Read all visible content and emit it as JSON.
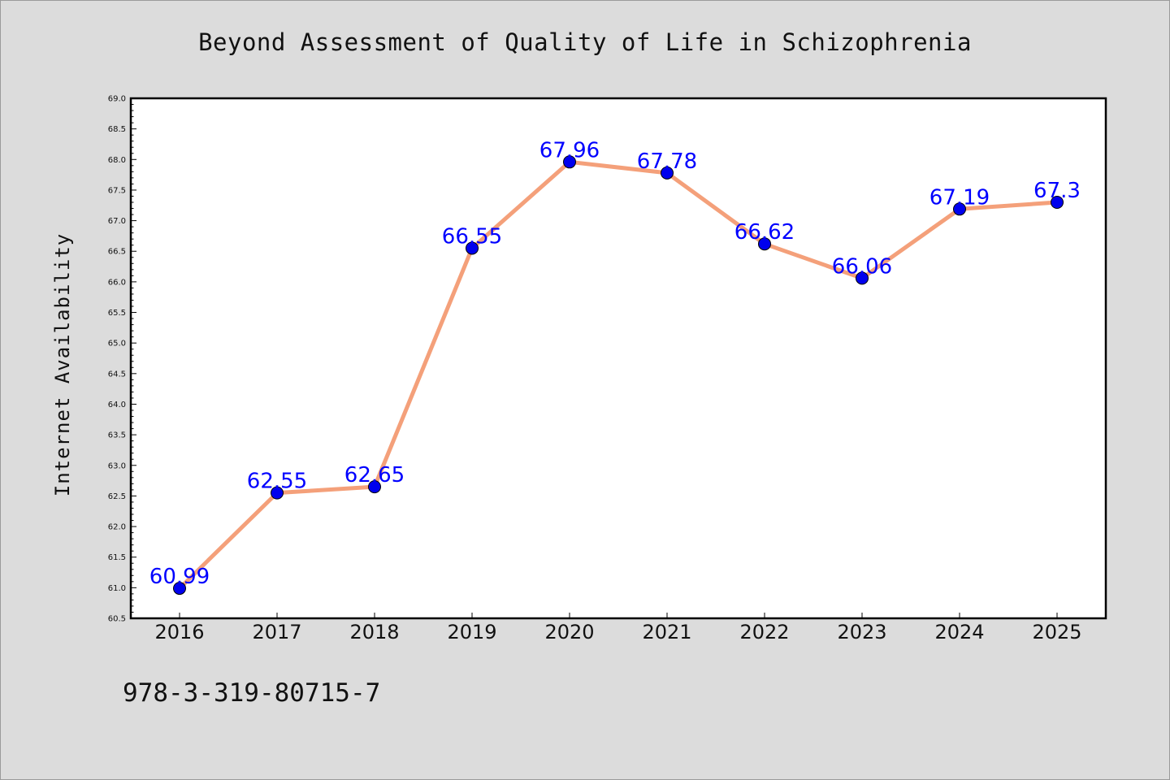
{
  "figure": {
    "title": "Beyond Assessment of Quality of Life in Schizophrenia",
    "footnote": "978-3-319-80715-7"
  },
  "chart_data": {
    "type": "line",
    "title": "Beyond Assessment of Quality of Life in Schizophrenia",
    "xlabel": "",
    "ylabel": "Internet Availability",
    "categories": [
      "2016",
      "2017",
      "2018",
      "2019",
      "2020",
      "2021",
      "2022",
      "2023",
      "2024",
      "2025"
    ],
    "series": [
      {
        "values": [
          60.99,
          62.55,
          62.65,
          66.55,
          67.96,
          67.78,
          66.62,
          66.06,
          67.19,
          67.3
        ],
        "labels": [
          "60.99",
          "62.55",
          "62.65",
          "66.55",
          "67.96",
          "67.78",
          "66.62",
          "66.06",
          "67.19",
          "67.3"
        ],
        "line_color": "#f4a07a",
        "marker_color": "#0000ee",
        "label_color": "#0000ff"
      }
    ],
    "ylim": [
      60.5,
      69.0
    ],
    "yticks": [
      "60.5",
      "61.0",
      "61.5",
      "62.0",
      "62.5",
      "63.0",
      "63.5",
      "64.0",
      "64.5",
      "65.0",
      "65.5",
      "66.0",
      "66.5",
      "67.0",
      "67.5",
      "68.0",
      "68.5",
      "69.0"
    ],
    "grid": false,
    "legend": "none",
    "background": "#ffffff",
    "figure_background": "#dcdcdc"
  }
}
